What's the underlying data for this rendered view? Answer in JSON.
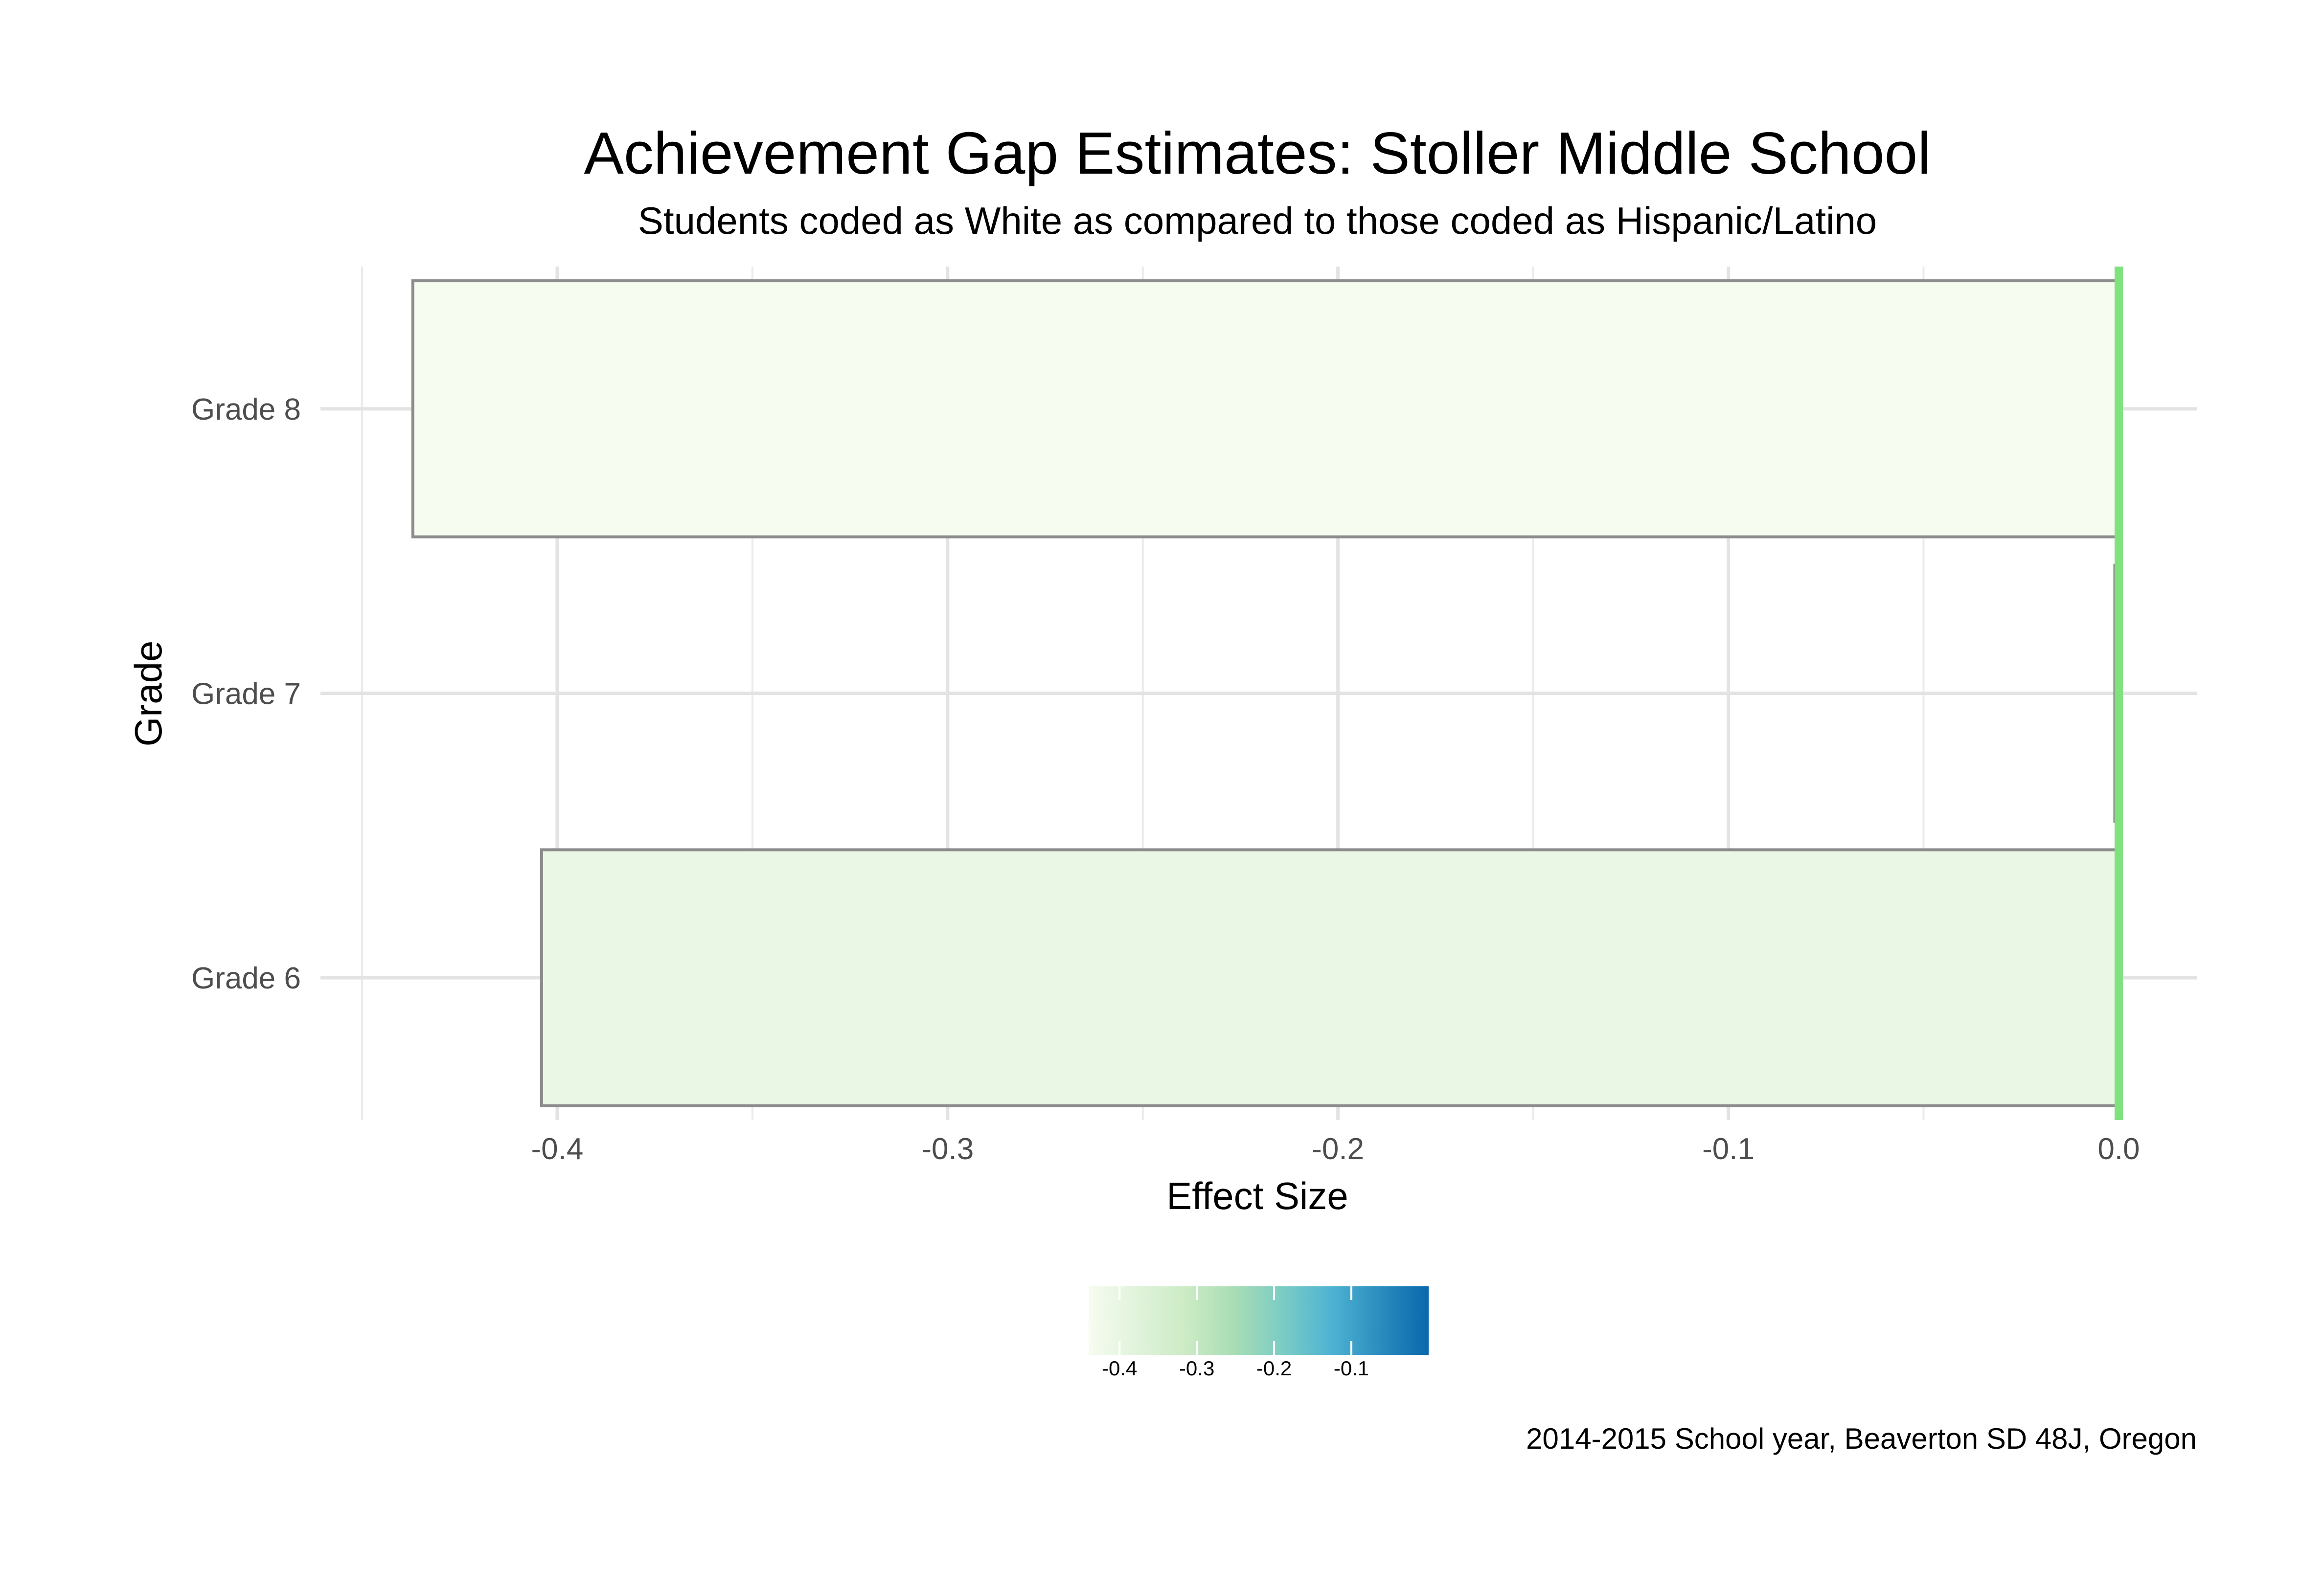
{
  "chart_data": {
    "type": "bar",
    "orientation": "horizontal",
    "title": "Achievement Gap Estimates: Stoller Middle School",
    "subtitle": "Students coded as White as compared to those coded as Hispanic/Latino",
    "xlabel": "Effect Size",
    "ylabel": "Grade",
    "caption": "2014-2015 School year, Beaverton SD 48J, Oregon",
    "categories": [
      "Grade 6",
      "Grade 7",
      "Grade 8"
    ],
    "values": [
      -0.404,
      -0.001,
      -0.437
    ],
    "xlim": [
      -0.45,
      0.02
    ],
    "xticks": [
      -0.4,
      -0.3,
      -0.2,
      -0.1,
      0.0
    ],
    "xtick_labels": [
      "-0.4",
      "-0.3",
      "-0.2",
      "-0.1",
      "0.0"
    ],
    "reference_line": {
      "x": 0.0,
      "color": "#7fe27f"
    },
    "grid": true,
    "bar_outline_color": "#8c8c8c",
    "fill_scale": {
      "palette": "GnBu",
      "domain": [
        -0.44,
        0.0
      ],
      "colors": [
        "#f7fcf0",
        "#e0f3db",
        "#ccebc5",
        "#a8ddb5",
        "#7bccc4",
        "#4eb3d3",
        "#2b8cbe",
        "#0868ac"
      ]
    },
    "legend": {
      "position": "bottom",
      "type": "colorbar",
      "ticks": [
        -0.4,
        -0.3,
        -0.2,
        -0.1
      ],
      "tick_labels": [
        "-0.4",
        "-0.3",
        "-0.2",
        "-0.1"
      ]
    }
  }
}
